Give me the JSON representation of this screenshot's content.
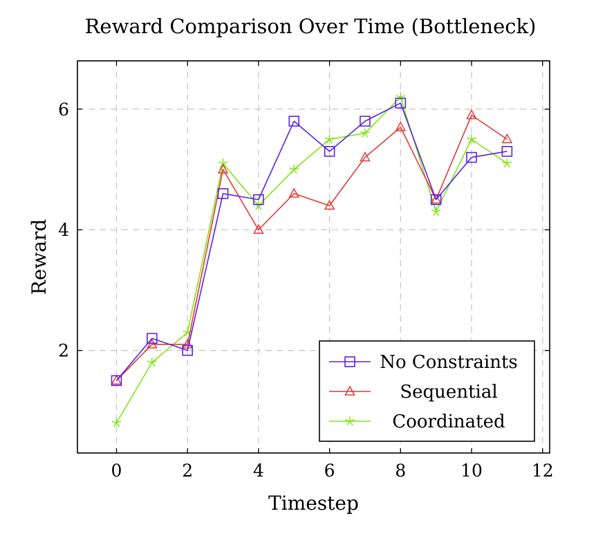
{
  "chart_data": {
    "type": "line",
    "title": "Reward Comparison Over Time (Bottleneck)",
    "xlabel": "Timestep",
    "ylabel": "Reward",
    "xlim": [
      -1.1,
      12.2
    ],
    "ylim": [
      0.3,
      6.8
    ],
    "xticks": [
      0,
      2,
      4,
      6,
      8,
      10,
      12
    ],
    "yticks": [
      2,
      4,
      6
    ],
    "grid": true,
    "legend_position": "bottom-right",
    "x": [
      0,
      1,
      2,
      3,
      4,
      5,
      6,
      7,
      8,
      9,
      10,
      11
    ],
    "series": [
      {
        "name": "No Constraints",
        "color": "#5b22e6",
        "marker": "square",
        "values": [
          1.5,
          2.2,
          2.0,
          4.6,
          4.5,
          5.8,
          5.3,
          5.8,
          6.1,
          4.5,
          5.2,
          5.3
        ]
      },
      {
        "name": "Sequential",
        "color": "#e03a33",
        "marker": "triangle",
        "values": [
          1.5,
          2.1,
          2.1,
          5.0,
          4.0,
          4.6,
          4.4,
          5.2,
          5.7,
          4.5,
          5.9,
          5.5
        ]
      },
      {
        "name": "Coordinated",
        "color": "#7fe614",
        "marker": "star",
        "values": [
          0.8,
          1.8,
          2.3,
          5.1,
          4.4,
          5.0,
          5.5,
          5.6,
          6.2,
          4.3,
          5.5,
          5.1
        ]
      }
    ]
  }
}
